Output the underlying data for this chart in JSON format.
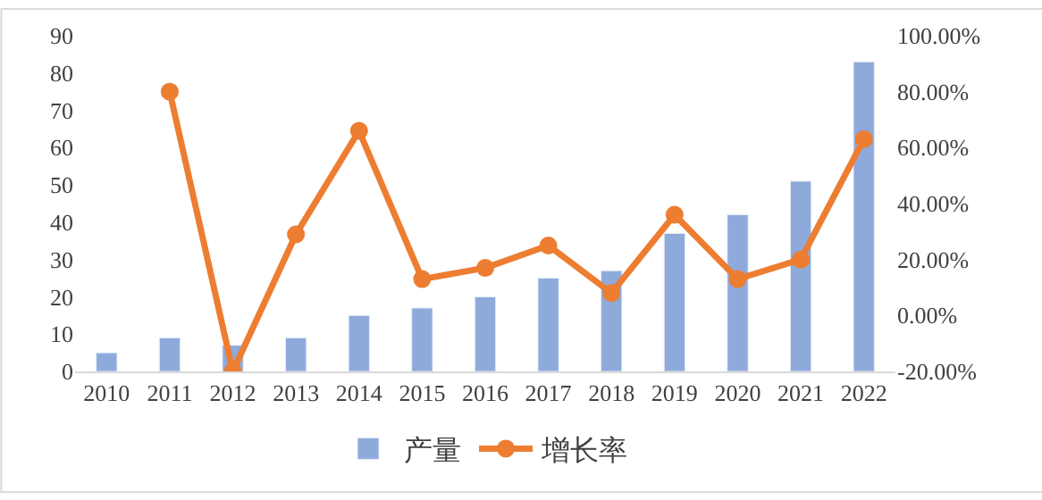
{
  "chart_data": {
    "type": "bar",
    "categories": [
      "2010",
      "2011",
      "2012",
      "2013",
      "2014",
      "2015",
      "2016",
      "2017",
      "2018",
      "2019",
      "2020",
      "2021",
      "2022"
    ],
    "series": [
      {
        "name": "产量",
        "color": "#8eaadb",
        "values": [
          5,
          9,
          7,
          9,
          15,
          17,
          20,
          25,
          27,
          37,
          42,
          51,
          83
        ]
      },
      {
        "name": "增长率",
        "type": "line",
        "axis": "y2",
        "color": "#ed7d31",
        "marker": "circle",
        "values": [
          null,
          80,
          -20,
          29,
          66,
          13,
          17,
          25,
          8,
          36,
          13,
          20,
          63
        ]
      }
    ],
    "ylim": [
      0,
      90
    ],
    "yticks": [
      0,
      10,
      20,
      30,
      40,
      50,
      60,
      70,
      80,
      90
    ],
    "y2lim": [
      -20,
      100
    ],
    "y2ticks": [
      {
        "value": -20,
        "label": "-20.00%"
      },
      {
        "value": 0,
        "label": "0.00%"
      },
      {
        "value": 20,
        "label": "20.00%"
      },
      {
        "value": 40,
        "label": "40.00%"
      },
      {
        "value": 60,
        "label": "60.00%"
      },
      {
        "value": 80,
        "label": "80.00%"
      },
      {
        "value": 100,
        "label": "100.00%"
      }
    ],
    "legend": "bottom"
  }
}
